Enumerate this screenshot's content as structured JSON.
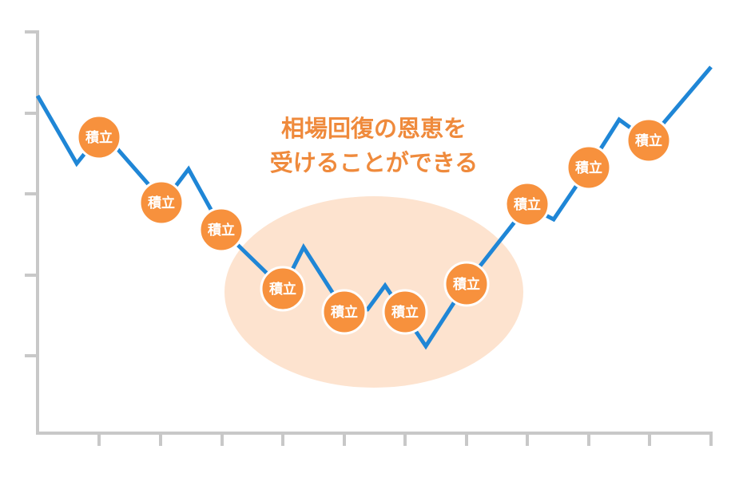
{
  "annotation": [
    "相場回復の恩恵を",
    "受けることができる"
  ],
  "badges": [
    {
      "label": "積立"
    },
    {
      "label": "積立"
    },
    {
      "label": "積立"
    },
    {
      "label": "積立"
    },
    {
      "label": "積立"
    },
    {
      "label": "積立"
    },
    {
      "label": "積立"
    },
    {
      "label": "積立"
    },
    {
      "label": "積立"
    },
    {
      "label": "積立"
    }
  ]
}
